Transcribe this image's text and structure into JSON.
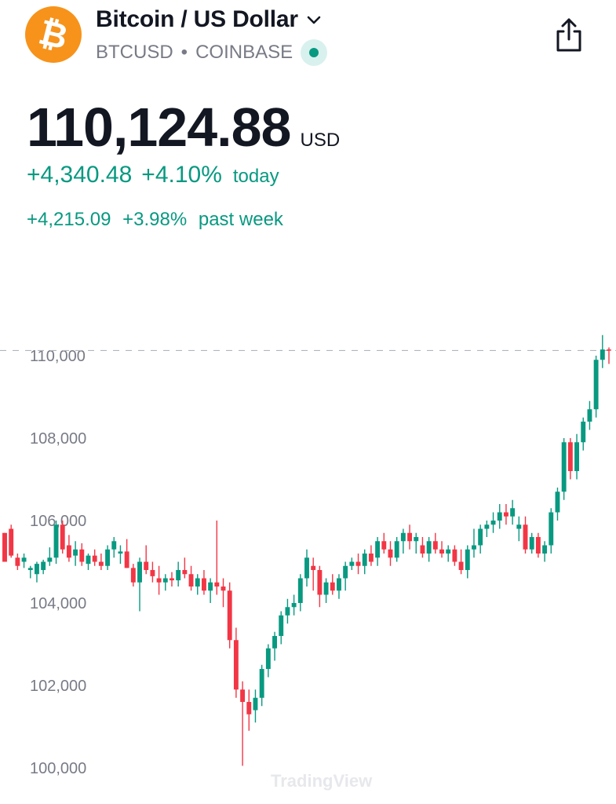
{
  "header": {
    "logo_glyph": "₿",
    "title": "Bitcoin / US Dollar",
    "symbol": "BTCUSD",
    "separator": "•",
    "exchange": "COINBASE",
    "logo_color": "#f7931a",
    "live_color": "#089981"
  },
  "quote": {
    "price": "110,124.88",
    "currency": "USD",
    "change_today": "+4,340.48",
    "change_today_pct": "+4.10%",
    "today_label": "today",
    "change_week": "+4,215.09",
    "change_week_pct": "+3.98%",
    "week_label": "past week",
    "positive_color": "#089981"
  },
  "icons": [
    "bitcoin-logo",
    "chevron-down-icon",
    "live-status-icon",
    "share-icon"
  ],
  "watermark": "TradingView",
  "chart_data": {
    "type": "candlestick",
    "up_color": "#089981",
    "down_color": "#f23645",
    "ylim": [
      99700,
      111300
    ],
    "yticks": [
      "110,000",
      "108,000",
      "106,000",
      "104,000",
      "102,000",
      "100,000"
    ],
    "ytick_values": [
      110000,
      108000,
      106000,
      104000,
      102000,
      100000
    ],
    "last_price_line": 110124.88,
    "candles": [
      [
        105700,
        105700,
        105000,
        105000
      ],
      [
        105800,
        105900,
        105100,
        105150
      ],
      [
        105100,
        105200,
        104800,
        104900
      ],
      [
        105000,
        105200,
        104850,
        105100
      ],
      [
        104800,
        104900,
        104600,
        104850
      ],
      [
        104700,
        105000,
        104500,
        104950
      ],
      [
        104800,
        105050,
        104700,
        105000
      ],
      [
        105000,
        105350,
        104900,
        105100
      ],
      [
        105100,
        106000,
        104950,
        105900
      ],
      [
        105900,
        106000,
        105200,
        105300
      ],
      [
        105400,
        105650,
        105000,
        105100
      ],
      [
        105150,
        105500,
        104900,
        105300
      ],
      [
        105300,
        105450,
        104900,
        105000
      ],
      [
        104950,
        105200,
        104800,
        105150
      ],
      [
        105150,
        105300,
        104900,
        105000
      ],
      [
        105000,
        105200,
        104800,
        104900
      ],
      [
        104900,
        105400,
        104800,
        105300
      ],
      [
        105300,
        105600,
        105100,
        105500
      ],
      [
        105200,
        105400,
        104950,
        105250
      ],
      [
        105250,
        105550,
        104850,
        104850
      ],
      [
        104850,
        104950,
        104400,
        104500
      ],
      [
        104500,
        105100,
        103800,
        105000
      ],
      [
        105000,
        105400,
        104700,
        104800
      ],
      [
        104800,
        105000,
        104500,
        104650
      ],
      [
        104600,
        104900,
        104200,
        104500
      ],
      [
        104500,
        104700,
        104300,
        104600
      ],
      [
        104600,
        104750,
        104400,
        104550
      ],
      [
        104550,
        105000,
        104400,
        104800
      ],
      [
        104800,
        105100,
        104600,
        104700
      ],
      [
        104700,
        104900,
        104300,
        104400
      ],
      [
        104400,
        104700,
        104200,
        104600
      ],
      [
        104600,
        104800,
        104200,
        104300
      ],
      [
        104300,
        104600,
        104000,
        104500
      ],
      [
        104500,
        106000,
        104200,
        104400
      ],
      [
        104400,
        104600,
        103900,
        104300
      ],
      [
        104300,
        104500,
        102900,
        103100
      ],
      [
        103100,
        103400,
        101700,
        101900
      ],
      [
        101900,
        102100,
        100050,
        101600
      ],
      [
        101600,
        101900,
        100900,
        101300
      ],
      [
        101400,
        101900,
        101100,
        101700
      ],
      [
        101700,
        102500,
        101500,
        102400
      ],
      [
        102400,
        103000,
        102200,
        102900
      ],
      [
        102900,
        103300,
        102600,
        103200
      ],
      [
        103200,
        103800,
        103000,
        103700
      ],
      [
        103700,
        104100,
        103500,
        103900
      ],
      [
        103900,
        104200,
        103700,
        104000
      ],
      [
        104000,
        104700,
        103800,
        104600
      ],
      [
        104600,
        105300,
        104400,
        105100
      ],
      [
        104900,
        105100,
        104300,
        104800
      ],
      [
        104800,
        104900,
        103900,
        104200
      ],
      [
        104200,
        104600,
        104000,
        104500
      ],
      [
        104500,
        104700,
        104200,
        104300
      ],
      [
        104300,
        104700,
        104100,
        104600
      ],
      [
        104600,
        105000,
        104300,
        104900
      ],
      [
        104900,
        105100,
        104800,
        105000
      ],
      [
        105000,
        105200,
        104700,
        104900
      ],
      [
        104900,
        105300,
        104700,
        105200
      ],
      [
        105200,
        105400,
        104900,
        105000
      ],
      [
        105100,
        105600,
        104900,
        105500
      ],
      [
        105500,
        105700,
        105200,
        105300
      ],
      [
        105300,
        105500,
        104900,
        105100
      ],
      [
        105100,
        105600,
        105000,
        105500
      ],
      [
        105500,
        105800,
        105200,
        105700
      ],
      [
        105700,
        105900,
        105300,
        105500
      ],
      [
        105500,
        105700,
        105200,
        105600
      ],
      [
        105400,
        105600,
        105100,
        105200
      ],
      [
        105200,
        105600,
        105000,
        105500
      ],
      [
        105500,
        105700,
        105200,
        105300
      ],
      [
        105300,
        105500,
        105100,
        105200
      ],
      [
        105200,
        105400,
        105000,
        105300
      ],
      [
        105300,
        105400,
        104900,
        105000
      ],
      [
        105000,
        105300,
        104700,
        104800
      ],
      [
        104800,
        105400,
        104600,
        105300
      ],
      [
        105300,
        105800,
        105100,
        105400
      ],
      [
        105400,
        105900,
        105200,
        105800
      ],
      [
        105800,
        106000,
        105600,
        105900
      ],
      [
        105900,
        106200,
        105700,
        106000
      ],
      [
        106000,
        106400,
        105800,
        106200
      ],
      [
        106200,
        106400,
        105900,
        106100
      ],
      [
        106100,
        106500,
        105900,
        106300
      ],
      [
        105800,
        106100,
        105500,
        105900
      ],
      [
        105900,
        106100,
        105200,
        105300
      ],
      [
        105300,
        105700,
        105200,
        105600
      ],
      [
        105600,
        105700,
        105100,
        105200
      ],
      [
        105200,
        105500,
        105000,
        105400
      ],
      [
        105400,
        106300,
        105200,
        106200
      ],
      [
        106200,
        106800,
        106000,
        106700
      ],
      [
        106700,
        108000,
        106500,
        107900
      ],
      [
        107900,
        108000,
        107000,
        107200
      ],
      [
        107200,
        108100,
        107000,
        107900
      ],
      [
        107900,
        108500,
        107700,
        108400
      ],
      [
        108400,
        108900,
        108200,
        108700
      ],
      [
        108700,
        110000,
        108500,
        109900
      ],
      [
        109900,
        110500,
        109700,
        110150
      ],
      [
        110150,
        110200,
        109800,
        110124.88
      ]
    ]
  }
}
